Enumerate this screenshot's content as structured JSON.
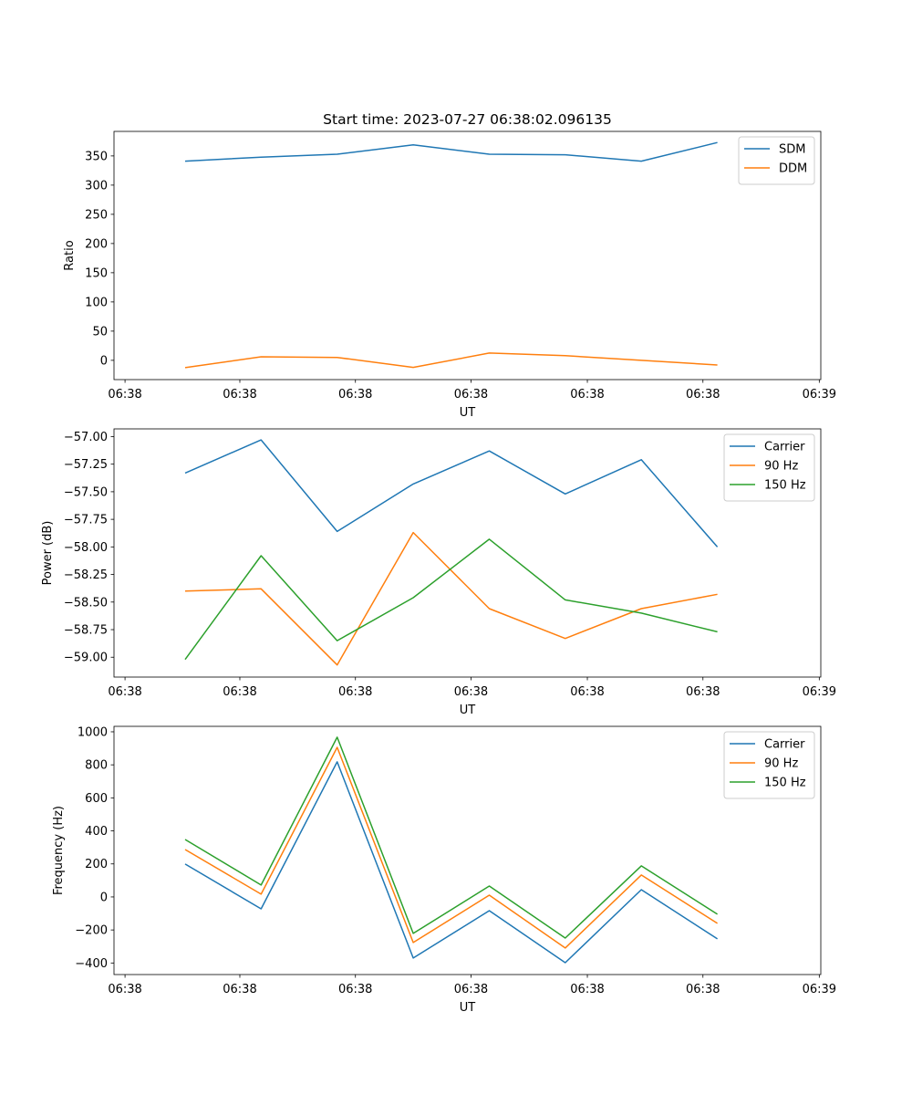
{
  "chart_data": [
    {
      "type": "line",
      "title": "Start time: 2023-07-27 06:38:02.096135",
      "xlabel": "UT",
      "ylabel": "Ratio",
      "x": [
        0,
        1,
        2,
        3,
        4,
        5,
        6,
        7
      ],
      "xlim": [
        -0.935,
        8.36
      ],
      "xticks": [
        -0.79,
        0.72,
        2.24,
        3.76,
        5.29,
        6.81,
        8.34
      ],
      "xtick_labels": [
        "06:38",
        "06:38",
        "06:38",
        "06:38",
        "06:38",
        "06:38",
        "06:39"
      ],
      "ylim": [
        -33,
        392
      ],
      "yticks": [
        0,
        50,
        100,
        150,
        200,
        250,
        300,
        350
      ],
      "ytick_labels": [
        "0",
        "50",
        "100",
        "150",
        "200",
        "250",
        "300",
        "350"
      ],
      "legend": "top-right",
      "series": [
        {
          "name": "SDM",
          "color": "#1f77b4",
          "values": [
            341,
            348,
            353,
            369,
            353,
            352,
            341,
            373
          ]
        },
        {
          "name": "DDM",
          "color": "#ff7f0e",
          "values": [
            -12.5,
            6,
            5,
            -12,
            12.5,
            8,
            0,
            -8
          ]
        }
      ]
    },
    {
      "type": "line",
      "title": "",
      "xlabel": "UT",
      "ylabel": "Power (dB)",
      "x": [
        0,
        1,
        2,
        3,
        4,
        5,
        6,
        7
      ],
      "xlim": [
        -0.935,
        8.36
      ],
      "xticks": [
        -0.79,
        0.72,
        2.24,
        3.76,
        5.29,
        6.81,
        8.34
      ],
      "xtick_labels": [
        "06:38",
        "06:38",
        "06:38",
        "06:38",
        "06:38",
        "06:38",
        "06:39"
      ],
      "ylim": [
        -59.18,
        -56.93
      ],
      "yticks": [
        -59,
        -58.75,
        -58.5,
        -58.25,
        -58,
        -57.75,
        -57.5,
        -57.25,
        -57
      ],
      "ytick_labels": [
        "−59.00",
        "−58.75",
        "−58.50",
        "−58.25",
        "−58.00",
        "−57.75",
        "−57.50",
        "−57.25",
        "−57.00"
      ],
      "legend": "top-right",
      "series": [
        {
          "name": "Carrier",
          "color": "#1f77b4",
          "values": [
            -57.33,
            -57.03,
            -57.86,
            -57.43,
            -57.13,
            -57.52,
            -57.21,
            -58.0
          ]
        },
        {
          "name": "90 Hz",
          "color": "#ff7f0e",
          "values": [
            -58.4,
            -58.38,
            -59.07,
            -57.87,
            -58.56,
            -58.83,
            -58.56,
            -58.43
          ]
        },
        {
          "name": "150 Hz",
          "color": "#2ca02c",
          "values": [
            -59.02,
            -58.08,
            -58.85,
            -58.46,
            -57.93,
            -58.48,
            -58.6,
            -58.77
          ]
        }
      ]
    },
    {
      "type": "line",
      "title": "",
      "xlabel": "UT",
      "ylabel": "Frequency (Hz)",
      "x": [
        0,
        1,
        2,
        3,
        4,
        5,
        6,
        7
      ],
      "xlim": [
        -0.935,
        8.36
      ],
      "xticks": [
        -0.79,
        0.72,
        2.24,
        3.76,
        5.29,
        6.81,
        8.34
      ],
      "xtick_labels": [
        "06:38",
        "06:38",
        "06:38",
        "06:38",
        "06:38",
        "06:38",
        "06:39"
      ],
      "ylim": [
        -470,
        1033
      ],
      "yticks": [
        -400,
        -200,
        0,
        200,
        400,
        600,
        800,
        1000
      ],
      "ytick_labels": [
        "−400",
        "−200",
        "0",
        "200",
        "400",
        "600",
        "800",
        "1000"
      ],
      "legend": "top-right",
      "series": [
        {
          "name": "Carrier",
          "color": "#1f77b4",
          "values": [
            199,
            -72,
            818,
            -370,
            -83,
            -398,
            44,
            -254
          ]
        },
        {
          "name": "90 Hz",
          "color": "#ff7f0e",
          "values": [
            287,
            17,
            906,
            -276,
            11,
            -309,
            133,
            -160
          ]
        },
        {
          "name": "150 Hz",
          "color": "#2ca02c",
          "values": [
            348,
            72,
            967,
            -221,
            66,
            -249,
            188,
            -105
          ]
        }
      ]
    }
  ]
}
